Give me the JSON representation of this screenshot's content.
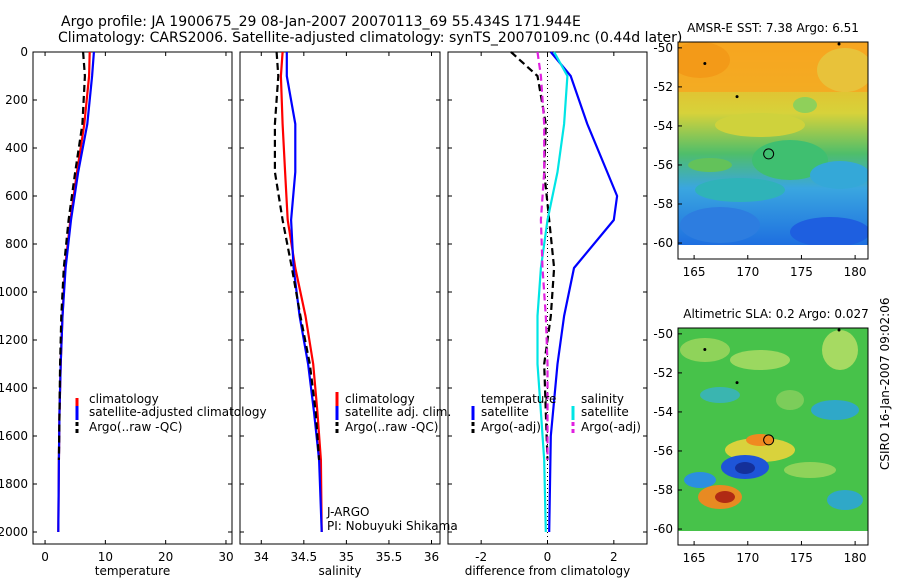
{
  "header": {
    "line1": "Argo profile: JA 1900675_29 08-Jan-2007 20070113_69 55.434S 171.944E",
    "line2": "Climatology: CARS2006. Satellite-adjusted climatology: synTS_20070109.nc (0.44d later)"
  },
  "credit": "CSIRO 16-Jan-2007 09:02:06",
  "pi_note": [
    "J-ARGO",
    "PI: Nobuyuki Shikama"
  ],
  "colors": {
    "climatology": "#ff0000",
    "satellite": "#0000ff",
    "argo": "#000000",
    "sal_satellite": "#00e5e5",
    "sal_argo": "#e020e0"
  },
  "chart_data": [
    {
      "type": "line",
      "xlabel": "temperature",
      "xlim": [
        -2,
        31
      ],
      "xticks": [
        0,
        10,
        20,
        30
      ],
      "ylim": [
        2050,
        0
      ],
      "yticks": [
        0,
        200,
        400,
        600,
        800,
        1000,
        1200,
        1400,
        1600,
        1800,
        2000
      ],
      "legend": {
        "position": "lower-right",
        "entries": [
          "climatology",
          "satellite-adjusted climatology",
          "Argo(..raw -QC)"
        ]
      },
      "series": [
        {
          "name": "climatology",
          "color": "#ff0000",
          "x": [
            7.4,
            7.3,
            6.5,
            5.3,
            4.2,
            3.3,
            2.9,
            2.6,
            2.4,
            2.3,
            2.2
          ],
          "y": [
            0,
            100,
            300,
            500,
            700,
            900,
            1100,
            1300,
            1500,
            1700,
            2000
          ]
        },
        {
          "name": "satellite-adjusted climatology",
          "color": "#0000ff",
          "x": [
            8.1,
            7.8,
            7.0,
            5.5,
            4.3,
            3.4,
            2.9,
            2.6,
            2.4,
            2.3,
            2.2
          ],
          "y": [
            0,
            100,
            300,
            500,
            700,
            900,
            1100,
            1300,
            1500,
            1700,
            2000
          ]
        },
        {
          "name": "Argo(..raw -QC)",
          "color": "#000000",
          "dash": true,
          "x": [
            6.3,
            6.6,
            6.2,
            5.0,
            3.9,
            3.1,
            2.7,
            2.5,
            2.4,
            2.3
          ],
          "y": [
            0,
            100,
            300,
            500,
            700,
            900,
            1100,
            1300,
            1500,
            1700
          ]
        }
      ]
    },
    {
      "type": "line",
      "xlabel": "salinity",
      "xlim": [
        33.75,
        36.1
      ],
      "xticks": [
        34,
        34.5,
        35,
        35.5,
        36
      ],
      "xticklabels": [
        "34",
        "34.5",
        "35",
        "35.5",
        "36"
      ],
      "ylim": [
        2050,
        0
      ],
      "legend": {
        "position": "lower-right",
        "entries": [
          "climatology",
          "satellite adj. clim.",
          "Argo(..raw -QC)"
        ]
      },
      "series": [
        {
          "name": "climatology",
          "color": "#ff0000",
          "x": [
            34.25,
            34.23,
            34.25,
            34.28,
            34.31,
            34.4,
            34.52,
            34.61,
            34.66,
            34.7,
            34.71
          ],
          "y": [
            0,
            100,
            300,
            500,
            700,
            900,
            1100,
            1300,
            1500,
            1700,
            2000
          ]
        },
        {
          "name": "satellite adj. clim.",
          "color": "#0000ff",
          "x": [
            34.3,
            34.3,
            34.4,
            34.4,
            34.35,
            34.38,
            34.45,
            34.55,
            34.62,
            34.68,
            34.71
          ],
          "y": [
            0,
            100,
            300,
            500,
            700,
            900,
            1100,
            1300,
            1500,
            1700,
            2000
          ]
        },
        {
          "name": "Argo(..raw -QC)",
          "color": "#000000",
          "dash": true,
          "x": [
            34.18,
            34.2,
            34.16,
            34.16,
            34.25,
            34.36,
            34.46,
            34.57,
            34.64,
            34.68
          ],
          "y": [
            0,
            100,
            300,
            500,
            700,
            900,
            1100,
            1300,
            1500,
            1700
          ]
        }
      ]
    },
    {
      "type": "line",
      "xlabel": "difference from climatology",
      "xlim": [
        -3,
        3
      ],
      "xticks": [
        -2,
        0,
        2
      ],
      "ylim": [
        2050,
        0
      ],
      "zero_line": "dotted",
      "legend": {
        "position": "lower-right",
        "groups": [
          {
            "title": "temperature",
            "entries": [
              "satellite",
              "Argo(-adj)"
            ]
          },
          {
            "title": "salinity",
            "entries": [
              "satellite",
              "Argo(-adj)"
            ]
          }
        ]
      },
      "series": [
        {
          "name": "temperature satellite",
          "color": "#0000ff",
          "x": [
            0.1,
            0.7,
            1.2,
            1.8,
            2.1,
            2.0,
            0.8,
            0.5,
            0.3,
            0.1,
            0.05
          ],
          "y": [
            0,
            100,
            300,
            500,
            600,
            700,
            900,
            1100,
            1300,
            1600,
            2000
          ]
        },
        {
          "name": "temperature Argo(-adj)",
          "color": "#000000",
          "dash": true,
          "x": [
            -1.1,
            -0.3,
            -0.05,
            -0.1,
            0.05,
            0.2,
            0.1,
            -0.1,
            -0.05,
            0.0
          ],
          "y": [
            0,
            100,
            300,
            500,
            700,
            900,
            1100,
            1300,
            1500,
            1700
          ]
        },
        {
          "name": "salinity satellite",
          "color": "#00e5e5",
          "x": [
            0.2,
            0.6,
            0.5,
            0.3,
            0.0,
            -0.2,
            -0.3,
            -0.3,
            -0.2,
            -0.1,
            -0.05
          ],
          "y": [
            0,
            100,
            300,
            500,
            700,
            900,
            1100,
            1300,
            1500,
            1700,
            2000
          ]
        },
        {
          "name": "salinity Argo(-adj)",
          "color": "#e020e0",
          "dash": true,
          "x": [
            -0.3,
            -0.2,
            -0.1,
            -0.1,
            -0.2,
            -0.15,
            -0.05,
            0.0,
            0.0,
            0.0
          ],
          "y": [
            0,
            100,
            300,
            500,
            700,
            900,
            1100,
            1300,
            1500,
            1700
          ]
        }
      ]
    },
    {
      "type": "heatmap",
      "title": "AMSR-E SST: 7.38 Argo: 6.51",
      "xlim": [
        163.5,
        181.2
      ],
      "ylim": [
        -60.1,
        -49.7
      ],
      "xticks": [
        165,
        170,
        175,
        180
      ],
      "yticks": [
        -50,
        -52,
        -54,
        -56,
        -58,
        -60
      ],
      "marker": {
        "lon": 171.944,
        "lat": -55.434,
        "shape": "circle"
      }
    },
    {
      "type": "heatmap",
      "title": "Altimetric SLA: 0.2 Argo: 0.027",
      "xlim": [
        163.5,
        181.2
      ],
      "ylim": [
        -60.1,
        -49.7
      ],
      "xticks": [
        165,
        170,
        175,
        180
      ],
      "yticks": [
        -50,
        -52,
        -54,
        -56,
        -58,
        -60
      ],
      "marker": {
        "lon": 171.944,
        "lat": -55.434,
        "shape": "circle"
      }
    }
  ]
}
